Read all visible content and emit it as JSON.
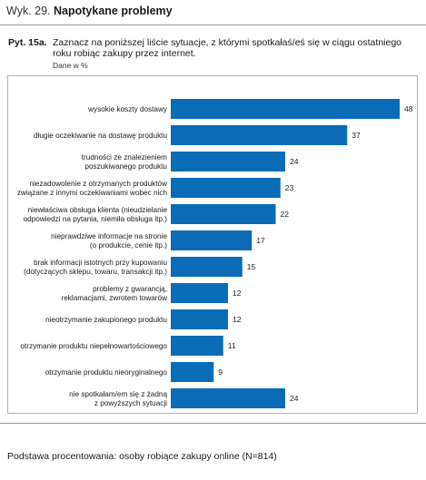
{
  "figure": {
    "prefix": "Wyk. 29.",
    "title": "Napotykane problemy"
  },
  "question": {
    "id": "Pyt. 15a.",
    "text": "Zaznacz na poniższej liście sytuacje, z którymi spotkałaś/eś się w ciągu ostatniego roku robiąc zakupy przez internet.",
    "unit_note": "Dane w %"
  },
  "footnote": "Podstawa procentowania: osoby robiące zakupy online (N=814)",
  "colors": {
    "bar": "#0a6cb6"
  },
  "chart_data": {
    "type": "bar",
    "orientation": "horizontal",
    "categories": [
      [
        "wysokie koszty dostawy"
      ],
      [
        "długie oczekiwanie na dostawę produktu"
      ],
      [
        "trudności ze znalezieniem",
        "poszukiwanego produktu"
      ],
      [
        "niezadowolenie z otrzymanych produktów",
        "związane z innymi oczekiwaniami wobec nich"
      ],
      [
        "niewłaściwa obsługa klienta (nieudzielanie",
        "odpowiedzi na pytania, niemiła obsługa itp.)"
      ],
      [
        "nieprawdziwe informacje na stronie",
        "(o produkcie, cenie itp.)"
      ],
      [
        "brak informacji istotnych przy kupowaniu",
        "(dotyczących sklepu, towaru, transakcji itp.)"
      ],
      [
        "problemy z gwarancją,",
        "reklamacjami, zwrotem towarów"
      ],
      [
        "nieotrzymanie zakupionego produktu"
      ],
      [
        "otrzymanie produktu niepełnowartościowego"
      ],
      [
        "otrzymanie produktu nieoryginalnego"
      ],
      [
        "nie spotkałam/em się z żadną",
        "z powyższych sytuacji"
      ]
    ],
    "values": [
      48,
      37,
      24,
      23,
      22,
      17,
      15,
      12,
      12,
      11,
      9,
      24
    ],
    "xlim": [
      0,
      48
    ],
    "grid": false,
    "legend": "none"
  }
}
